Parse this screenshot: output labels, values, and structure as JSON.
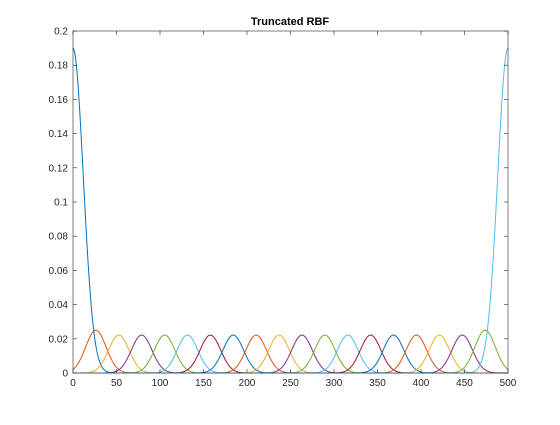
{
  "chart_data": {
    "type": "line",
    "title": "Truncated RBF",
    "xlabel": "",
    "ylabel": "",
    "xlim": [
      0,
      500
    ],
    "ylim": [
      0,
      0.2
    ],
    "xticks": [
      "0",
      "50",
      "100",
      "150",
      "200",
      "250",
      "300",
      "350",
      "400",
      "450",
      "500"
    ],
    "yticks": [
      "0",
      "0.02",
      "0.04",
      "0.06",
      "0.08",
      "0.1",
      "0.12",
      "0.14",
      "0.16",
      "0.18",
      "0.2"
    ],
    "grid": false,
    "legend": "none",
    "colors": [
      "#0072BD",
      "#D95319",
      "#EDB120",
      "#7E2F8E",
      "#77AC30",
      "#4DBEEE",
      "#A2142F"
    ],
    "basis": {
      "count": 20,
      "centers": [
        0,
        26.3,
        52.6,
        78.9,
        105.3,
        131.6,
        157.9,
        184.2,
        210.5,
        236.8,
        263.2,
        289.5,
        315.8,
        342.1,
        368.4,
        394.7,
        421.1,
        447.4,
        473.7,
        500
      ],
      "width": 11.8,
      "interior_peak": 0.0222,
      "near_edge_peak": 0.025,
      "edge_peak": 0.19
    }
  }
}
